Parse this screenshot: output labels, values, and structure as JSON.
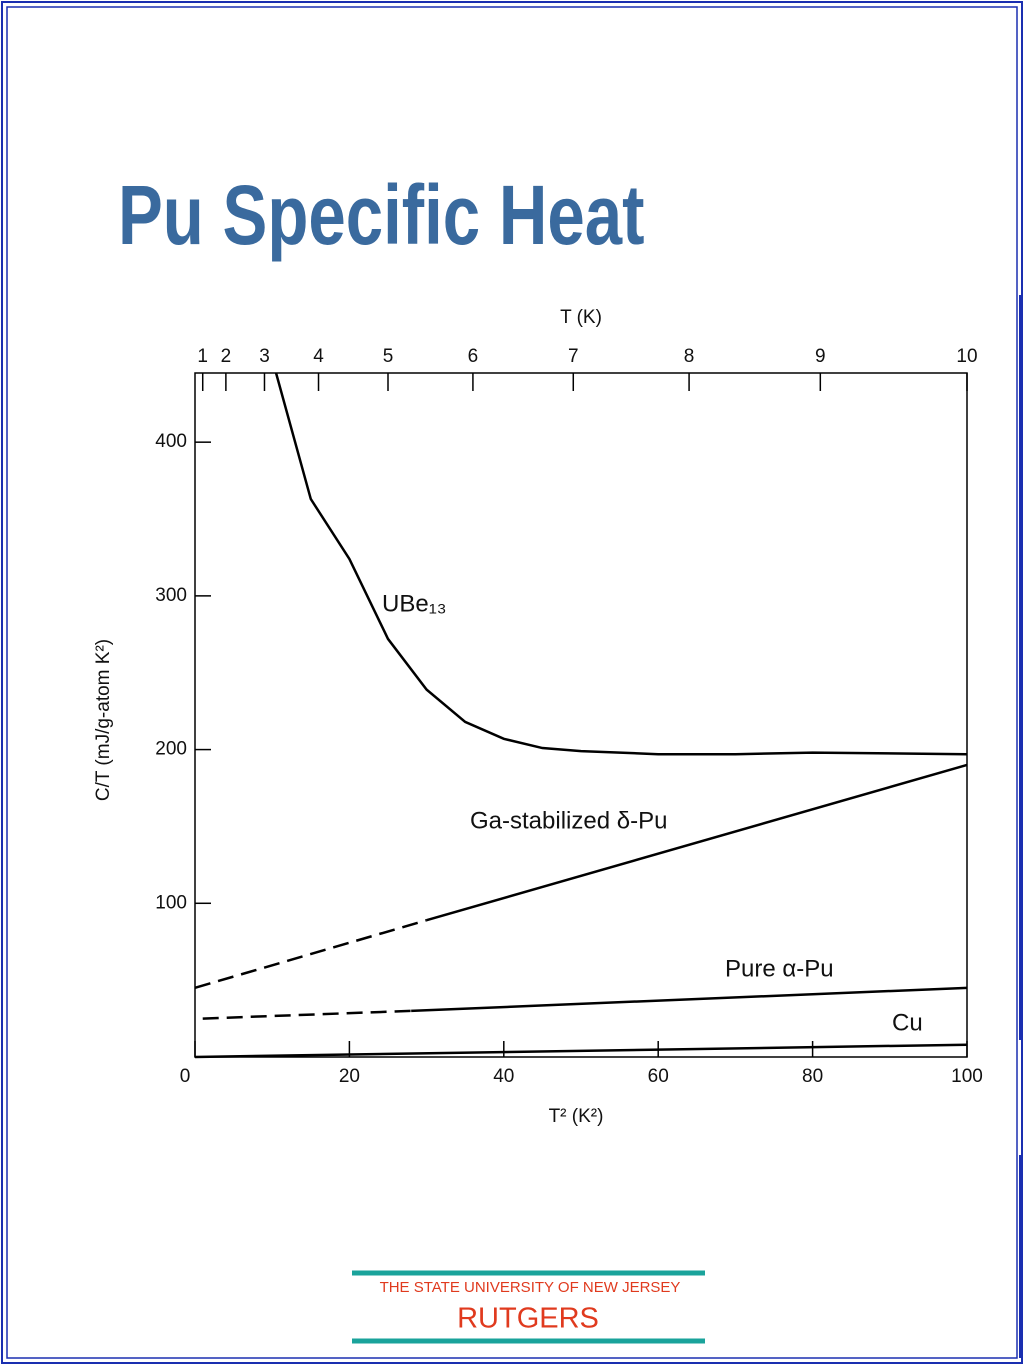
{
  "title": "Pu Specific Heat",
  "chart_data": {
    "type": "line",
    "xlabel": "T² (K²)",
    "ylabel": "C/T (mJ/g-atom K²)",
    "x2label": "T (K)",
    "xlim": [
      0,
      100
    ],
    "ylim": [
      0,
      445
    ],
    "xticks": [
      0,
      20,
      40,
      60,
      80,
      100
    ],
    "yticks": [
      100,
      200,
      300,
      400
    ],
    "x2ticks": [
      1,
      2,
      3,
      4,
      5,
      6,
      7,
      8,
      9,
      10
    ],
    "x2scale": "square",
    "series": [
      {
        "name": "UBe₁₃",
        "color": "#000000",
        "x": [
          10.5,
          15,
          20,
          25,
          30,
          35,
          40,
          45,
          50,
          60,
          70,
          80,
          100
        ],
        "values": [
          445,
          363,
          324,
          272,
          239,
          218,
          207,
          201,
          199,
          197,
          197,
          198,
          197
        ],
        "linestyles": [
          "solid",
          "solid",
          "solid",
          "solid",
          "solid",
          "solid",
          "solid",
          "solid",
          "solid",
          "solid",
          "solid",
          "solid"
        ]
      },
      {
        "name": "Ga-stabilized δ-Pu",
        "color": "#000000",
        "x": [
          0,
          30,
          100
        ],
        "values": [
          45,
          89,
          190
        ],
        "linestyles": [
          "dashed",
          "solid"
        ]
      },
      {
        "name": "Pure α-Pu",
        "color": "#000000",
        "x": [
          1,
          28,
          100
        ],
        "values": [
          25,
          30,
          45
        ],
        "linestyles": [
          "dashed",
          "solid"
        ]
      },
      {
        "name": "Cu",
        "color": "#000000",
        "x": [
          0,
          100
        ],
        "values": [
          0,
          8
        ],
        "linestyles": [
          "solid"
        ]
      }
    ]
  },
  "footer": {
    "university": "THE STATE UNIVERSITY OF NEW JERSEY",
    "name": "RUTGERS"
  }
}
